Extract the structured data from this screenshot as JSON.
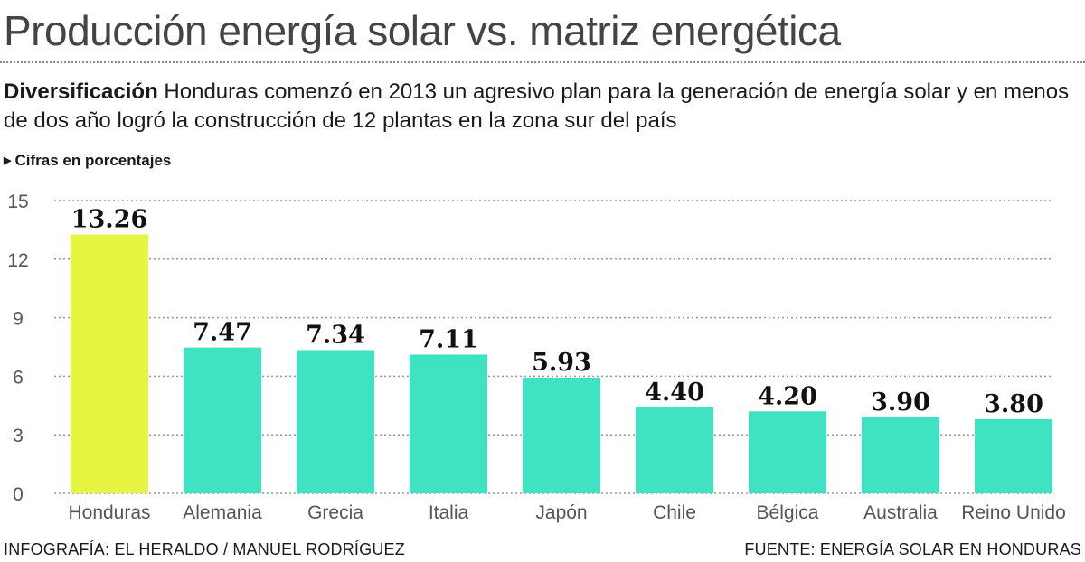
{
  "header": {
    "title": "Producción energía solar vs. matriz energética",
    "subtitle_lead": "Diversificación",
    "subtitle_text": "Honduras comenzó en 2013 un agresivo plan para la generación de energía solar y en menos de dos año logró la construcción de 12 plantas en la zona sur del país",
    "units_note": "Cifras en porcentajes",
    "units_marker_icon": "triangle-right-icon"
  },
  "chart_data": {
    "type": "bar",
    "categories": [
      "Honduras",
      "Alemania",
      "Grecia",
      "Italia",
      "Japón",
      "Chile",
      "Bélgica",
      "Australia",
      "Reino Unido"
    ],
    "values": [
      13.26,
      7.47,
      7.34,
      7.11,
      5.93,
      4.4,
      4.2,
      3.9,
      3.8
    ],
    "value_labels": [
      "13.26",
      "7.47",
      "7.34",
      "7.11",
      "5.93",
      "4.40",
      "4.20",
      "3.90",
      "3.80"
    ],
    "ylim": [
      0,
      15
    ],
    "yticks": [
      0,
      3,
      6,
      9,
      12,
      15
    ],
    "grid": true,
    "colors": {
      "highlight": "#e5f542",
      "bars": "#3fe2c1"
    },
    "highlight_category": "Honduras"
  },
  "footer": {
    "credit": "INFOGRAFÍA: EL HERALDO / MANUEL RODRÍGUEZ",
    "source": "FUENTE: ENERGÍA SOLAR EN HONDURAS"
  }
}
